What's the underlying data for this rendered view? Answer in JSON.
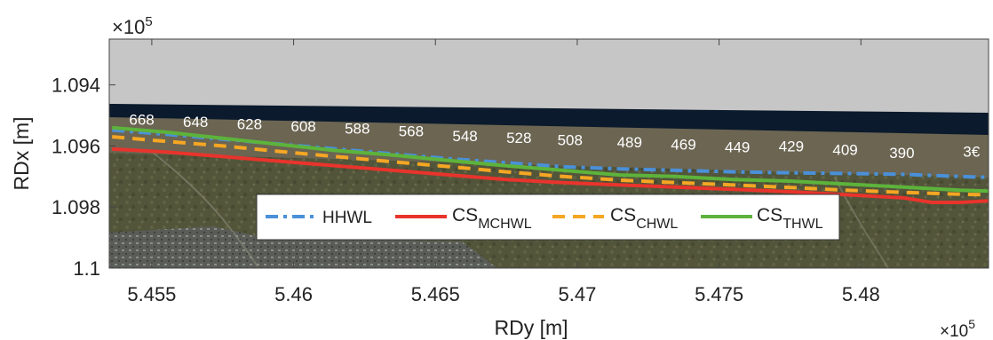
{
  "chart_data": {
    "type": "line",
    "title": "",
    "xlabel": "RDy [m]",
    "ylabel": "RDx [m]",
    "x_exponent_label": "×10",
    "x_exponent_power": "5",
    "y_exponent_label": "×10",
    "y_exponent_power": "5",
    "xlim": [
      5.4535,
      5.4845
    ],
    "ylim": [
      1.0925,
      1.1
    ],
    "y_reversed": true,
    "xticks": [
      5.455,
      5.46,
      5.465,
      5.47,
      5.475,
      5.48
    ],
    "xtick_labels": [
      "5.455",
      "5.46",
      "5.465",
      "5.47",
      "5.475",
      "5.48"
    ],
    "yticks": [
      1.094,
      1.096,
      1.098,
      1.1
    ],
    "ytick_labels": [
      "1.094",
      "1.096",
      "1.098",
      "1.1"
    ],
    "grid": false,
    "background": "aerial photograph (sea, beach, dunes, campsite)",
    "series": [
      {
        "name": "HHWL",
        "color": "#4a90d9",
        "style": "dashdot",
        "x": [
          5.4536,
          5.4555,
          5.4575,
          5.4595,
          5.4615,
          5.4635,
          5.4655,
          5.4675,
          5.4695,
          5.4715,
          5.4735,
          5.4755,
          5.4775,
          5.4795,
          5.4815,
          5.4835,
          5.4845
        ],
        "y": [
          1.09548,
          1.09562,
          1.09578,
          1.09594,
          1.0961,
          1.09626,
          1.09642,
          1.09655,
          1.09668,
          1.09675,
          1.0968,
          1.09685,
          1.09688,
          1.0969,
          1.09693,
          1.097,
          1.09703
        ]
      },
      {
        "name": "CS_MCHWL",
        "sub": "MCHWL",
        "color": "#e8342c",
        "style": "solid",
        "x": [
          5.4536,
          5.4555,
          5.4575,
          5.4595,
          5.4615,
          5.4635,
          5.4655,
          5.4675,
          5.4695,
          5.4715,
          5.4735,
          5.4755,
          5.4775,
          5.4795,
          5.4815,
          5.4825,
          5.4835,
          5.4845
        ],
        "y": [
          1.0961,
          1.0962,
          1.09635,
          1.0965,
          1.09665,
          1.0968,
          1.09695,
          1.0971,
          1.0972,
          1.09728,
          1.09735,
          1.09742,
          1.0975,
          1.0976,
          1.0977,
          1.09785,
          1.09785,
          1.0978
        ]
      },
      {
        "name": "CS_CHWL",
        "sub": "CHWL",
        "color": "#f5a623",
        "style": "dashed",
        "x": [
          5.4536,
          5.4555,
          5.4575,
          5.4595,
          5.4615,
          5.4635,
          5.4655,
          5.4675,
          5.4695,
          5.4715,
          5.4735,
          5.4755,
          5.4775,
          5.4795,
          5.4815,
          5.4835,
          5.4845
        ],
        "y": [
          1.0957,
          1.09585,
          1.096,
          1.09618,
          1.09635,
          1.09652,
          1.09668,
          1.09685,
          1.097,
          1.09712,
          1.0972,
          1.09728,
          1.09736,
          1.09745,
          1.09752,
          1.09758,
          1.0976
        ]
      },
      {
        "name": "CS_THWL",
        "sub": "THWL",
        "color": "#5db33b",
        "style": "solid",
        "x": [
          5.4536,
          5.4555,
          5.4575,
          5.4595,
          5.4615,
          5.4635,
          5.4655,
          5.4675,
          5.4695,
          5.4715,
          5.4735,
          5.4755,
          5.4775,
          5.4795,
          5.4815,
          5.4835,
          5.4845
        ],
        "y": [
          1.0954,
          1.09555,
          1.09575,
          1.09595,
          1.09615,
          1.0963,
          1.09648,
          1.09665,
          1.0968,
          1.09695,
          1.097,
          1.0971,
          1.09715,
          1.09725,
          1.09735,
          1.09745,
          1.09748
        ]
      }
    ],
    "annotations": [
      {
        "text": "668",
        "x": 5.4542,
        "y": 1.0953
      },
      {
        "text": "648",
        "x": 5.4561,
        "y": 1.09538
      },
      {
        "text": "628",
        "x": 5.458,
        "y": 1.09545
      },
      {
        "text": "608",
        "x": 5.4599,
        "y": 1.09553
      },
      {
        "text": "588",
        "x": 5.4618,
        "y": 1.0956
      },
      {
        "text": "568",
        "x": 5.4637,
        "y": 1.09568
      },
      {
        "text": "548",
        "x": 5.4656,
        "y": 1.09585
      },
      {
        "text": "528",
        "x": 5.4675,
        "y": 1.0959
      },
      {
        "text": "508",
        "x": 5.4693,
        "y": 1.09598
      },
      {
        "text": "489",
        "x": 5.4714,
        "y": 1.09605
      },
      {
        "text": "469",
        "x": 5.4733,
        "y": 1.09612
      },
      {
        "text": "449",
        "x": 5.4752,
        "y": 1.0962
      },
      {
        "text": "429",
        "x": 5.4771,
        "y": 1.09618
      },
      {
        "text": "409",
        "x": 5.479,
        "y": 1.0963
      },
      {
        "text": "390",
        "x": 5.481,
        "y": 1.0964
      },
      {
        "text": "3€",
        "x": 5.4836,
        "y": 1.09635
      }
    ]
  },
  "legend": {
    "placement": "bottom-center",
    "items": [
      {
        "label": "HHWL",
        "sub": ""
      },
      {
        "label": "CS",
        "sub": "MCHWL"
      },
      {
        "label": "CS",
        "sub": "CHWL"
      },
      {
        "label": "CS",
        "sub": "THWL"
      }
    ]
  },
  "colors": {
    "sky": "#c6c6c6",
    "sea": "#0b1a2c",
    "beach": "#6b6552",
    "dunes": "#54563a",
    "campsite": "#5b5e58"
  }
}
